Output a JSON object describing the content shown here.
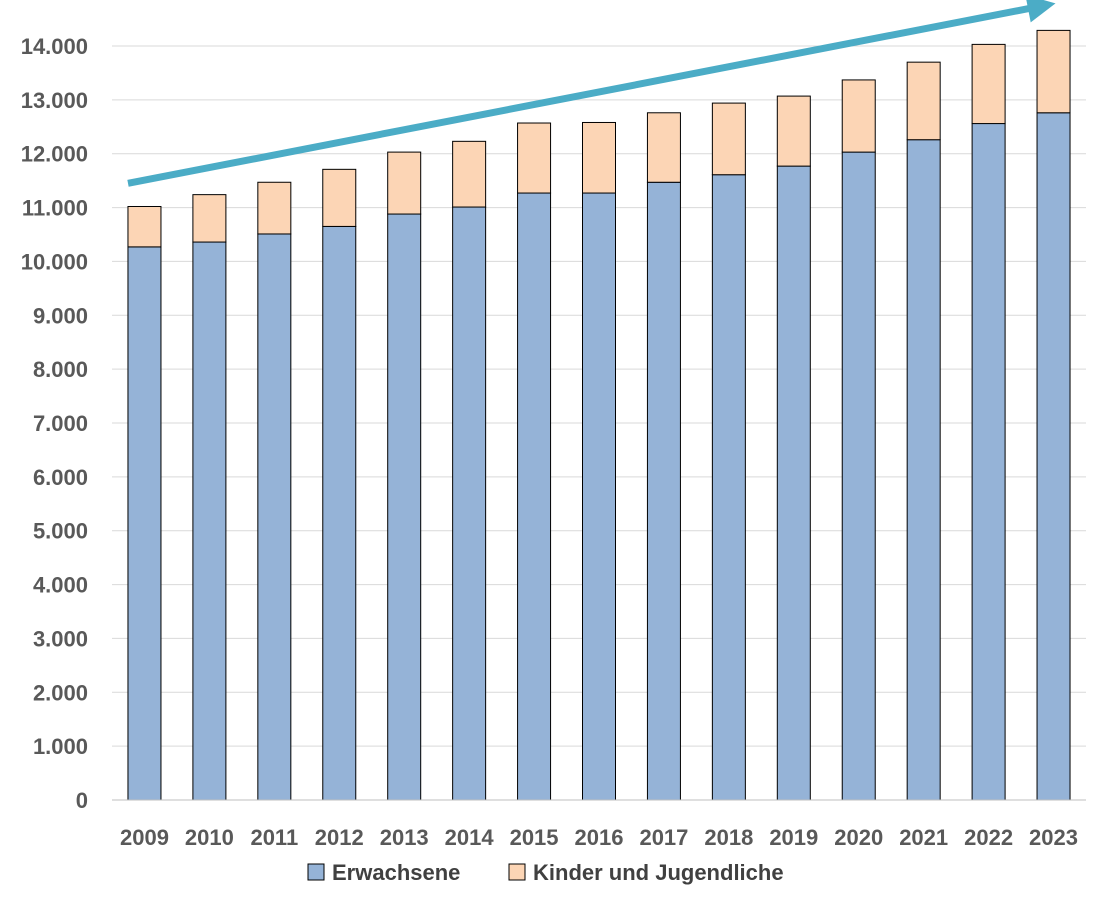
{
  "chart_data": {
    "type": "bar",
    "stacked": true,
    "categories": [
      "2009",
      "2010",
      "2011",
      "2012",
      "2013",
      "2014",
      "2015",
      "2016",
      "2017",
      "2018",
      "2019",
      "2020",
      "2021",
      "2022",
      "2023"
    ],
    "series": [
      {
        "name": "Erwachsene",
        "color": "#95b3d7",
        "values": [
          10270,
          10360,
          10510,
          10650,
          10880,
          11010,
          11270,
          11270,
          11470,
          11610,
          11770,
          12030,
          12260,
          12560,
          12760
        ]
      },
      {
        "name": "Kinder und Jugendliche",
        "color": "#fcd5b5",
        "values": [
          750,
          880,
          960,
          1060,
          1150,
          1220,
          1300,
          1310,
          1290,
          1330,
          1300,
          1340,
          1440,
          1470,
          1530
        ]
      }
    ],
    "y_ticks": [
      "0",
      "1.000",
      "2.000",
      "3.000",
      "4.000",
      "5.000",
      "6.000",
      "7.000",
      "8.000",
      "9.000",
      "10.000",
      "11.000",
      "12.000",
      "13.000",
      "14.000"
    ],
    "ylim": [
      0,
      14000
    ],
    "grid": true,
    "legend_position": "bottom",
    "annotations": [
      {
        "type": "trend-arrow",
        "color": "#4bacc6",
        "from_y": 11450,
        "to_y": 14700,
        "direction": "up-right"
      }
    ],
    "title": "",
    "xlabel": "",
    "ylabel": ""
  }
}
